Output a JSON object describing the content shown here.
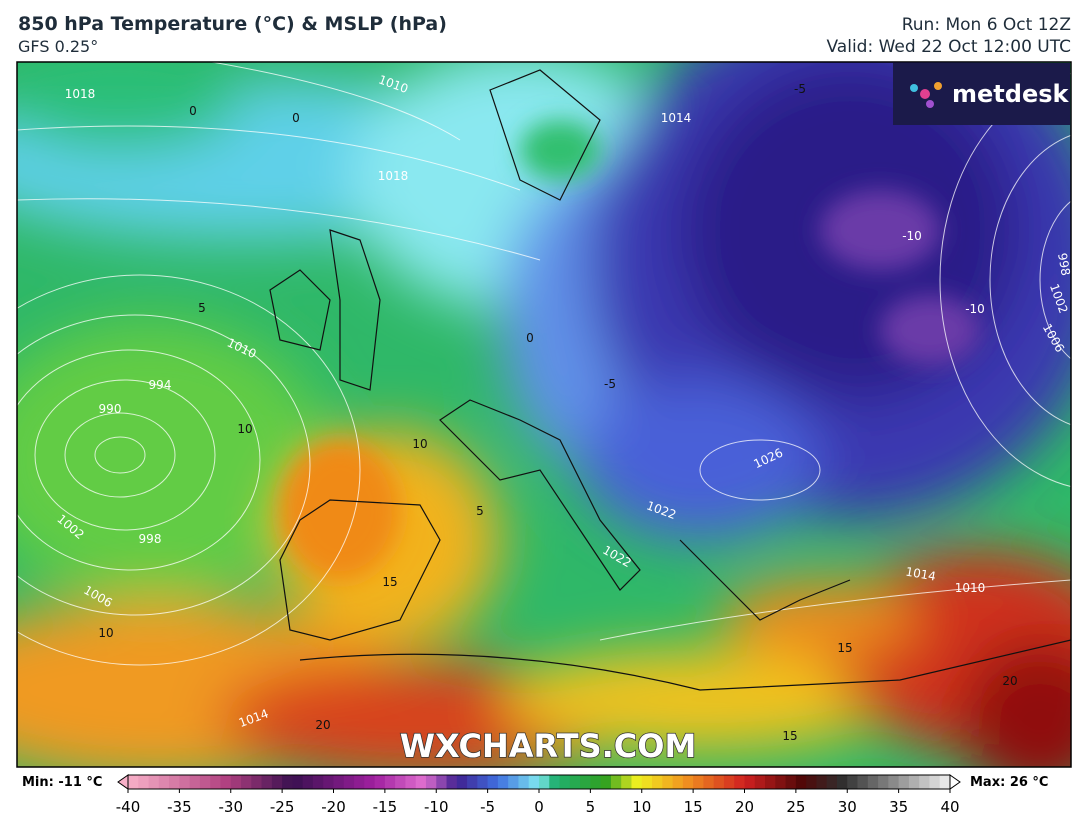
{
  "header": {
    "title": "850 hPa Temperature (°C) & MSLP (hPa)",
    "model": "GFS 0.25°",
    "run": "Run: Mon 6 Oct 12Z",
    "valid": "Valid: Wed 22 Oct 12:00 UTC"
  },
  "logo": "metdesk",
  "watermark": "WXCHARTS.COM",
  "colorbar": {
    "min_label": "Min: -11 °C",
    "max_label": "Max: 26 °C",
    "lim": [
      -40,
      40
    ],
    "ticks": [
      -40,
      -35,
      -30,
      -25,
      -20,
      -15,
      -10,
      -5,
      0,
      5,
      10,
      15,
      20,
      25,
      30,
      35,
      40
    ]
  },
  "map_labels": [
    "1018",
    "0",
    "0",
    "1010",
    "1018",
    "1014",
    "5",
    "1010",
    "994",
    "990",
    "10",
    "1002",
    "998",
    "1006",
    "10",
    "5",
    "0",
    "-5",
    "-10",
    "1026",
    "1022",
    "1022",
    "15",
    "15",
    "1010",
    "1014",
    "20",
    "20",
    "1014",
    "15",
    "998",
    "1002",
    "1006",
    "-10",
    "-5",
    "10"
  ]
}
